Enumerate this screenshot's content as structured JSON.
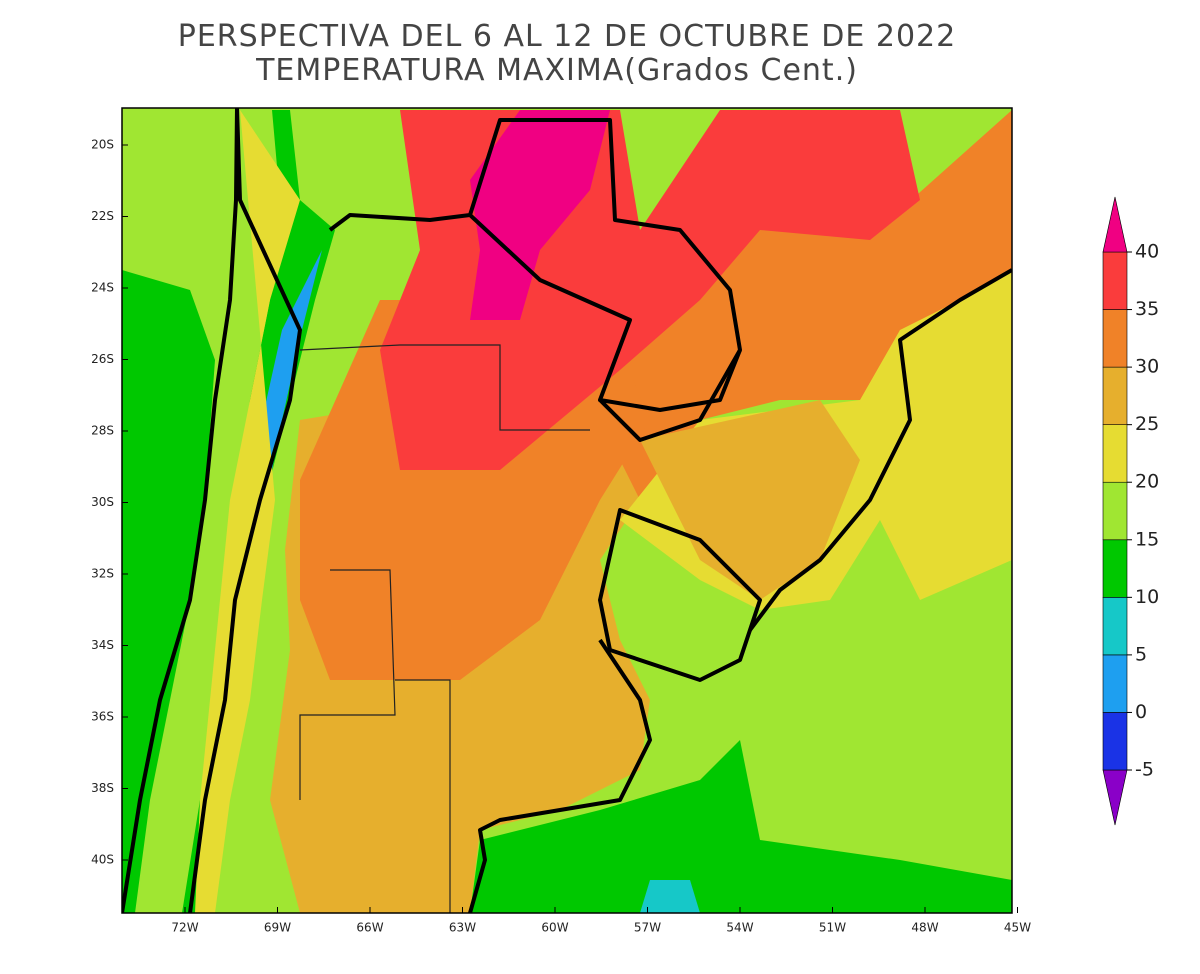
{
  "title": [
    "PERSPECTIVA DEL 6 AL 12 DE OCTUBRE DE 2022",
    "TEMPERATURA MAXIMA(Grados Cent.)"
  ],
  "lat_labels": [
    "20S",
    "22S",
    "24S",
    "26S",
    "28S",
    "30S",
    "32S",
    "34S",
    "36S",
    "38S",
    "40S"
  ],
  "lon_labels": [
    "72W",
    "69W",
    "66W",
    "63W",
    "60W",
    "57W",
    "54W",
    "51W",
    "48W",
    "45W"
  ],
  "colorbar": {
    "levels": [
      -5,
      0,
      5,
      10,
      15,
      20,
      25,
      30,
      35,
      40
    ],
    "colors": [
      "#8a00c8",
      "#1a33e6",
      "#1e9ff0",
      "#16c8c8",
      "#00c800",
      "#a0e632",
      "#e6dc32",
      "#e6af2d",
      "#f08228",
      "#fa3c3c",
      "#f00082"
    ]
  }
}
